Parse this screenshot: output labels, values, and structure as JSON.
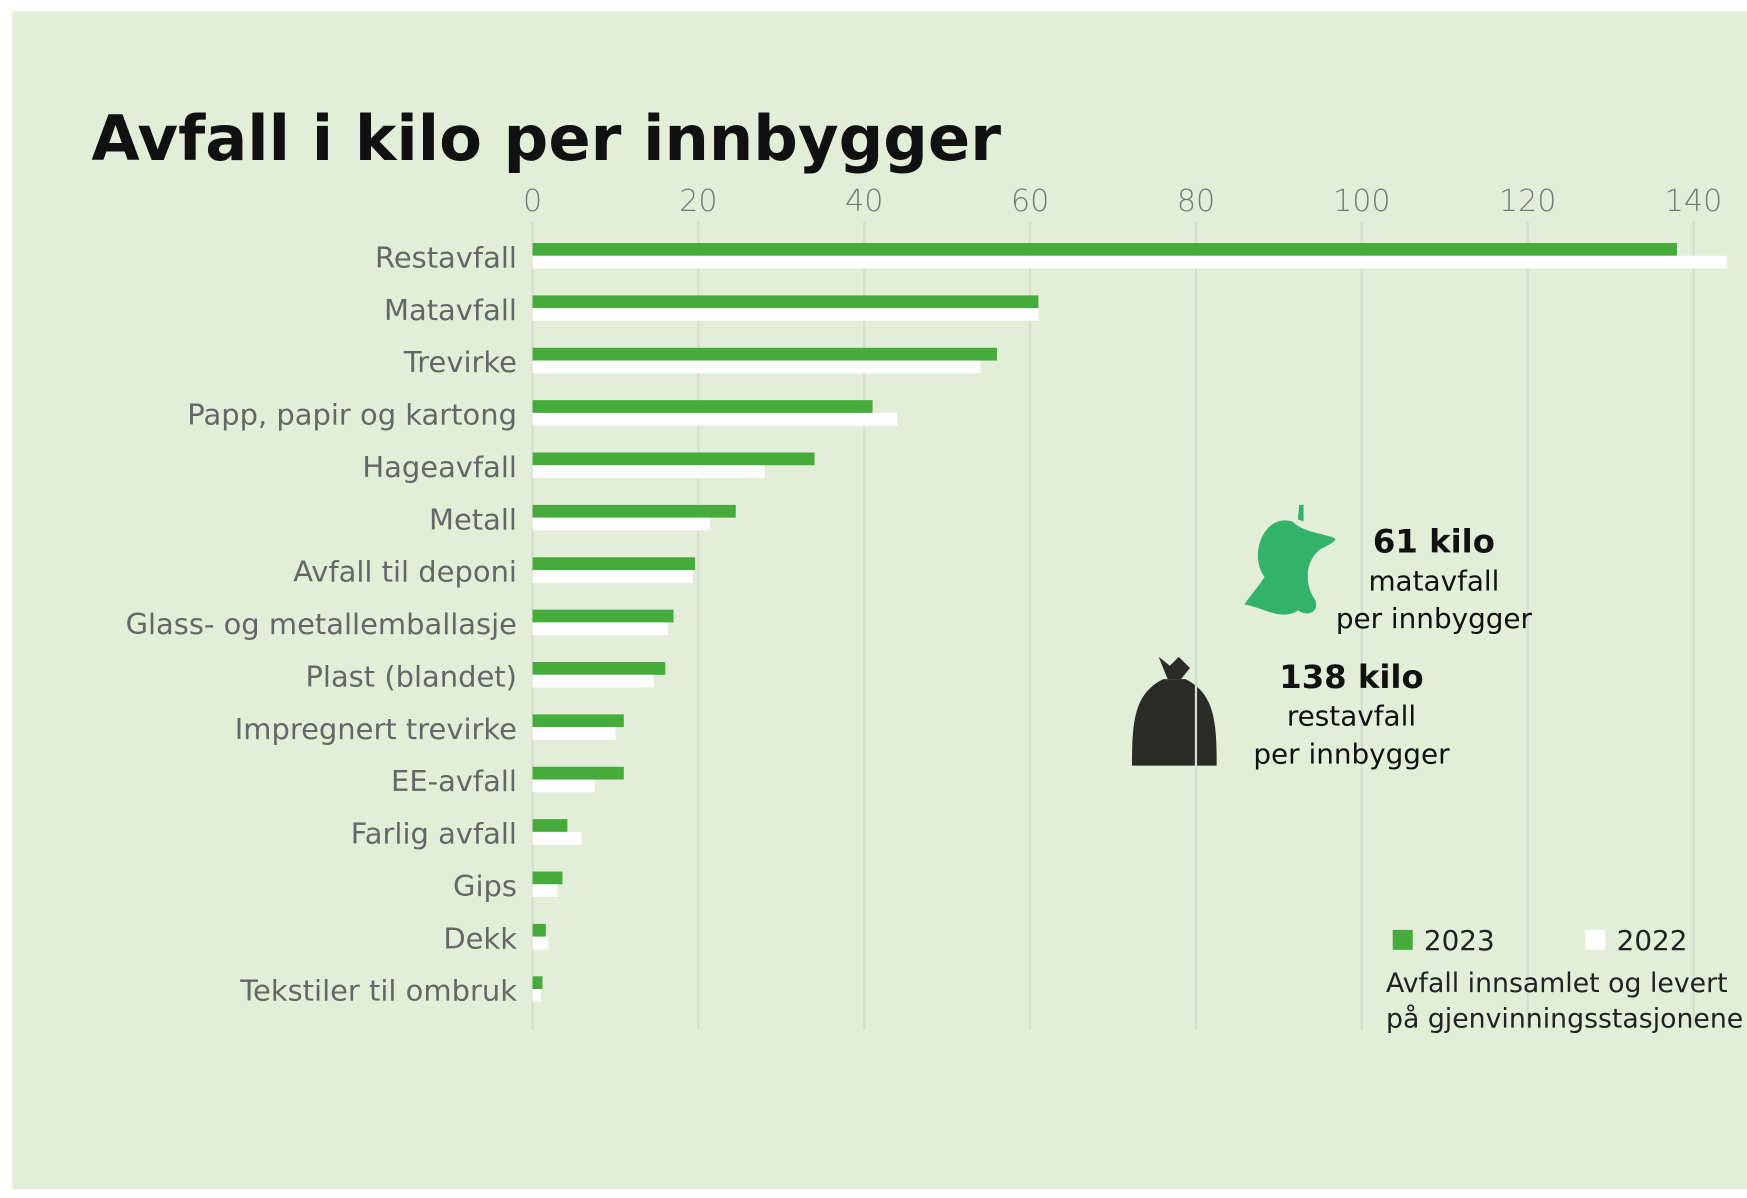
{
  "chart_data": {
    "type": "barh",
    "title": "Avfall i kilo per innbygger",
    "categories": [
      "Restavfall",
      "Matavfall",
      "Trevirke",
      "Papp, papir og kartong",
      "Hageavfall",
      "Metall",
      "Avfall til deponi",
      "Glass- og metallemballasje",
      "Plast (blandet)",
      "Impregnert trevirke",
      "EE-avfall",
      "Farlig avfall",
      "Gips",
      "Dekk",
      "Tekstiler til ombruk"
    ],
    "series": [
      {
        "name": "2023",
        "color": "#45ab3a",
        "values": [
          138,
          61,
          56,
          41,
          34,
          24.5,
          19.6,
          17,
          16,
          11,
          11,
          4.2,
          3.6,
          1.6,
          1.2
        ]
      },
      {
        "name": "2022",
        "color": "#ffffff",
        "values": [
          144,
          61,
          54,
          44,
          28,
          21.4,
          19.3,
          16.3,
          14.6,
          10,
          7.5,
          5.9,
          3,
          1.9,
          1
        ]
      }
    ],
    "xlim": [
      0,
      140
    ],
    "xticks": [
      0,
      20,
      40,
      60,
      80,
      100,
      120,
      140
    ],
    "grid": true,
    "annotations": [
      [
        "61 kilo",
        "matavfall",
        "per innbygger"
      ],
      [
        "138 kilo",
        "restavfall",
        "per innbygger"
      ]
    ],
    "note": [
      "Avfall innsamlet og levert",
      "på gjenvinningsstasjonene"
    ]
  }
}
